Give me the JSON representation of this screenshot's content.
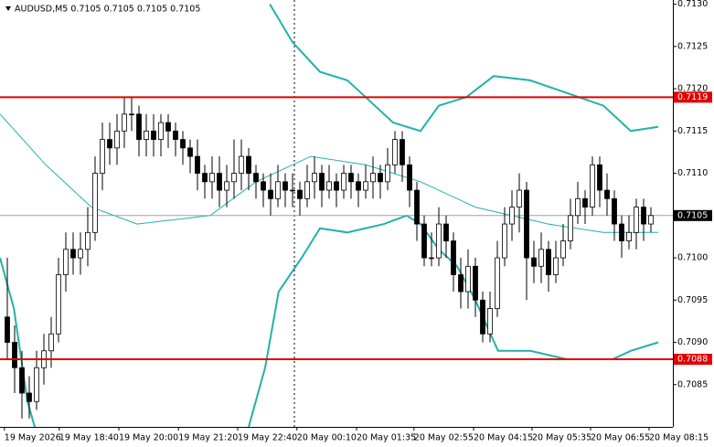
{
  "chart_data": {
    "type": "candlestick",
    "title": "AUDUSD,M5  0.7105 0.7105 0.7105 0.7105",
    "open": [
      0.7093,
      0.709,
      0.7087,
      0.7084,
      0.7083,
      0.7087,
      0.7089,
      0.7091,
      0.7098,
      0.7101,
      0.71,
      0.7101,
      0.7103,
      0.711,
      0.7114,
      0.7113,
      0.7115,
      0.7117,
      0.7117,
      0.7114,
      0.7115,
      0.7114,
      0.7116,
      0.7115,
      0.7114,
      0.7113,
      0.7112,
      0.711,
      0.7109,
      0.711,
      0.7108,
      0.7109,
      0.711,
      0.7112,
      0.711,
      0.7109,
      0.7108,
      0.7107,
      0.7109,
      0.7108,
      0.7108,
      0.7107,
      0.7109,
      0.711,
      0.7108,
      0.7109,
      0.7108,
      0.711,
      0.7109,
      0.7108,
      0.7109,
      0.711,
      0.7109,
      0.7111,
      0.7114,
      0.7111,
      0.7108,
      0.7104,
      0.71,
      0.71,
      0.7104,
      0.7102,
      0.7098,
      0.7096,
      0.7099,
      0.7095,
      0.7091,
      0.7094,
      0.71,
      0.7104,
      0.7106,
      0.7108,
      0.71,
      0.7099,
      0.7101,
      0.7098,
      0.71,
      0.7102,
      0.7105,
      0.7107,
      0.7106,
      0.7111,
      0.7108,
      0.7107,
      0.7104,
      0.7102,
      0.7103,
      0.7106,
      0.7104
    ],
    "high": [
      0.71,
      0.7092,
      0.7089,
      0.7086,
      0.7089,
      0.7091,
      0.7093,
      0.71,
      0.7103,
      0.7103,
      0.7103,
      0.7106,
      0.7112,
      0.7116,
      0.7116,
      0.7117,
      0.7119,
      0.7119,
      0.7118,
      0.7117,
      0.7117,
      0.7117,
      0.7117,
      0.7116,
      0.7115,
      0.7114,
      0.7114,
      0.7111,
      0.7112,
      0.7112,
      0.7111,
      0.7114,
      0.7114,
      0.7113,
      0.7111,
      0.711,
      0.711,
      0.7111,
      0.711,
      0.711,
      0.7109,
      0.7111,
      0.7112,
      0.7111,
      0.7111,
      0.711,
      0.7111,
      0.7111,
      0.711,
      0.7111,
      0.7112,
      0.7111,
      0.7113,
      0.7115,
      0.7115,
      0.7112,
      0.7109,
      0.7105,
      0.7103,
      0.7106,
      0.7105,
      0.7103,
      0.71,
      0.7101,
      0.71,
      0.7096,
      0.7096,
      0.7102,
      0.7106,
      0.7108,
      0.711,
      0.7109,
      0.7102,
      0.7103,
      0.7102,
      0.7102,
      0.7104,
      0.7107,
      0.7109,
      0.7108,
      0.7112,
      0.7112,
      0.711,
      0.7108,
      0.7105,
      0.7105,
      0.7107,
      0.7107,
      0.7106
    ],
    "low": [
      0.7088,
      0.7084,
      0.7081,
      0.7081,
      0.7082,
      0.7085,
      0.7087,
      0.709,
      0.7096,
      0.7098,
      0.7098,
      0.7099,
      0.7102,
      0.7108,
      0.7111,
      0.7111,
      0.7113,
      0.7115,
      0.7112,
      0.7112,
      0.7112,
      0.7112,
      0.7113,
      0.7112,
      0.7111,
      0.711,
      0.7108,
      0.7107,
      0.7107,
      0.7106,
      0.7106,
      0.7107,
      0.7108,
      0.7108,
      0.7107,
      0.7106,
      0.7105,
      0.7106,
      0.7106,
      0.7106,
      0.7105,
      0.7106,
      0.7107,
      0.7106,
      0.7107,
      0.7106,
      0.7107,
      0.7107,
      0.7106,
      0.7107,
      0.7107,
      0.7107,
      0.7108,
      0.711,
      0.7109,
      0.7106,
      0.7102,
      0.7099,
      0.7099,
      0.7099,
      0.71,
      0.7096,
      0.7094,
      0.7094,
      0.7093,
      0.709,
      0.709,
      0.7093,
      0.7099,
      0.7102,
      0.7103,
      0.7095,
      0.7097,
      0.7097,
      0.7096,
      0.7097,
      0.7099,
      0.7101,
      0.7104,
      0.7104,
      0.7105,
      0.7106,
      0.7105,
      0.7102,
      0.71,
      0.7101,
      0.7101,
      0.7102,
      0.7103
    ],
    "close": [
      0.709,
      0.7087,
      0.7084,
      0.7083,
      0.7087,
      0.7089,
      0.7091,
      0.7098,
      0.7101,
      0.71,
      0.7101,
      0.7103,
      0.711,
      0.7114,
      0.7113,
      0.7115,
      0.7117,
      0.7117,
      0.7114,
      0.7115,
      0.7114,
      0.7116,
      0.7115,
      0.7114,
      0.7113,
      0.7112,
      0.711,
      0.7109,
      0.711,
      0.7108,
      0.7109,
      0.711,
      0.7112,
      0.711,
      0.7109,
      0.7108,
      0.7107,
      0.7109,
      0.7108,
      0.7108,
      0.7107,
      0.7109,
      0.711,
      0.7108,
      0.7109,
      0.7108,
      0.711,
      0.7109,
      0.7108,
      0.7109,
      0.711,
      0.7109,
      0.7111,
      0.7114,
      0.7111,
      0.7108,
      0.7104,
      0.71,
      0.71,
      0.7104,
      0.7102,
      0.7098,
      0.7096,
      0.7099,
      0.7095,
      0.7091,
      0.7094,
      0.71,
      0.7104,
      0.7106,
      0.7108,
      0.71,
      0.7099,
      0.7101,
      0.7098,
      0.71,
      0.7102,
      0.7105,
      0.7107,
      0.7106,
      0.7111,
      0.7108,
      0.7107,
      0.7104,
      0.7102,
      0.7103,
      0.7106,
      0.7104,
      0.7105
    ],
    "bull_color": "#ffffff",
    "bear_color": "#000000",
    "bands": [
      {
        "color": "#20b2aa",
        "width": 2,
        "x": [
          35.9,
          39,
          42.75,
          46.5,
          49,
          52.75,
          56.5,
          59,
          62.75,
          66.5,
          71.5,
          76.5,
          81.5,
          85.25,
          89
        ],
        "values": [
          0.713,
          0.71255,
          0.7122,
          0.7121,
          0.7119,
          0.7116,
          0.7115,
          0.7118,
          0.7119,
          0.71215,
          0.7121,
          0.71195,
          0.7118,
          0.7115,
          0.71155
        ]
      },
      {
        "color": "#20b2aa",
        "width": 1,
        "x": [
          -1,
          5.25,
          11.5,
          17.75,
          27.75,
          34,
          41.5,
          49,
          56.5,
          64,
          74,
          81.5,
          89
        ],
        "values": [
          0.7117,
          0.7111,
          0.7106,
          0.7104,
          0.7105,
          0.7109,
          0.7112,
          0.7111,
          0.7109,
          0.7106,
          0.7104,
          0.7103,
          0.7103
        ]
      },
      {
        "color": "#20b2aa",
        "width": 2,
        "x": [
          -1,
          0.9,
          2.75,
          3.75,
          null,
          33,
          35.25,
          37.1,
          40.25,
          42.75,
          46.5,
          51.5,
          54.6,
          56.5,
          59,
          61.5,
          64,
          67.1,
          71.5,
          76.5,
          82.75,
          85.25,
          89
        ],
        "values": [
          0.71,
          0.7094,
          0.7083,
          0.708,
          null,
          0.708,
          0.7087,
          0.7096,
          0.71,
          0.71035,
          0.7103,
          0.7104,
          0.7105,
          0.7104,
          0.7101,
          0.7099,
          0.7095,
          0.7089,
          0.7089,
          0.7088,
          0.7088,
          0.7089,
          0.709
        ]
      }
    ],
    "levels": [
      {
        "value": 0.7119,
        "label": "0.7119",
        "color": "#e00000"
      },
      {
        "value": 0.7088,
        "label": "0.7088",
        "color": "#e00000"
      }
    ],
    "current_price": {
      "value": 0.7105,
      "label": "0.7105",
      "color": "#a0a0a0"
    },
    "xlim": [
      -1,
      91
    ],
    "xticks": [
      {
        "value": -0.4,
        "label": "19 May 2026"
      },
      {
        "value": 7.1,
        "label": "19 May 18:40"
      },
      {
        "value": 15.25,
        "label": "19 May 20:00"
      },
      {
        "value": 23.4,
        "label": "19 May 21:20"
      },
      {
        "value": 31.5,
        "label": "19 May 22:40"
      },
      {
        "value": 39.6,
        "label": "20 May 00:10"
      },
      {
        "value": 47.75,
        "label": "20 May 01:35"
      },
      {
        "value": 55.6,
        "label": "20 May 02:55"
      },
      {
        "value": 63.75,
        "label": "20 May 04:15"
      },
      {
        "value": 71.75,
        "label": "20 May 05:35"
      },
      {
        "value": 79.75,
        "label": "20 May 06:55"
      },
      {
        "value": 87.75,
        "label": "20 May 08:15"
      }
    ],
    "ylim": [
      0.708,
      0.71305
    ],
    "yticks": [
      {
        "value": 0.713,
        "label": "0.7130"
      },
      {
        "value": 0.7125,
        "label": "0.7125"
      },
      {
        "value": 0.712,
        "label": "0.7120"
      },
      {
        "value": 0.7115,
        "label": "0.7115"
      },
      {
        "value": 0.711,
        "label": "0.7110"
      },
      {
        "value": 0.7105,
        "label": "0.7105"
      },
      {
        "value": 0.71,
        "label": "0.7100"
      },
      {
        "value": 0.7095,
        "label": "0.7095"
      },
      {
        "value": 0.709,
        "label": "0.7090"
      },
      {
        "value": 0.7085,
        "label": "0.7085"
      }
    ]
  }
}
